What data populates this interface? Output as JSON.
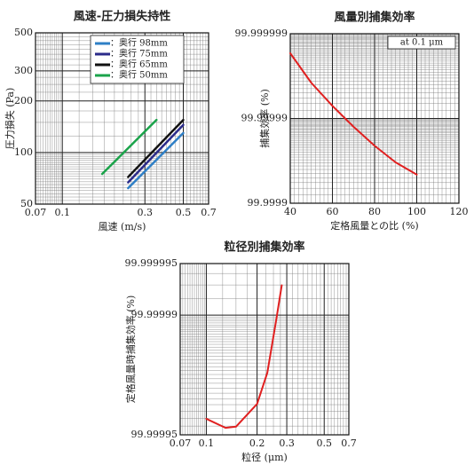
{
  "chart_data": [
    {
      "type": "line",
      "title": "風速-圧力損失持性",
      "x_label": "風速 (m/s)",
      "y_label": "圧力損失 (Pa)",
      "xscale": "log",
      "yscale": "log",
      "xlim": [
        0.07,
        0.7
      ],
      "xticks": [
        0.07,
        0.1,
        0.3,
        0.5,
        0.7
      ],
      "ylim": [
        50,
        500
      ],
      "yticks": [
        50,
        100,
        200,
        300,
        500
      ],
      "legend": "top-left",
      "series": [
        {
          "name": "：奥行 98mm",
          "color": "#2e7fc6",
          "x": [
            0.24,
            0.5
          ],
          "values": [
            62,
            130
          ]
        },
        {
          "name": "：奥行 75mm",
          "color": "#2b2b8a",
          "x": [
            0.24,
            0.5
          ],
          "values": [
            67,
            145
          ]
        },
        {
          "name": "：奥行 65mm",
          "color": "#111111",
          "x": [
            0.24,
            0.5
          ],
          "values": [
            72,
            155
          ]
        },
        {
          "name": "：奥行 50mm",
          "color": "#1aa34a",
          "x": [
            0.17,
            0.35
          ],
          "values": [
            75,
            155
          ]
        }
      ]
    },
    {
      "type": "line",
      "title": "風量別捕集効率",
      "x_label": "定格風量との比 (%)",
      "y_label": "捕集効率 (%)",
      "annotation": "at 0.1 μm",
      "xscale": "linear",
      "yscale": "log-penetration",
      "xlim": [
        40,
        120
      ],
      "xticks": [
        40,
        60,
        80,
        100,
        120
      ],
      "ylim": [
        99.9999,
        99.999999
      ],
      "yticks": [
        99.9999,
        99.99999,
        99.999999
      ],
      "color": "#e02020",
      "x": [
        40,
        50,
        60,
        70,
        80,
        90,
        100
      ],
      "values": [
        99.9999983,
        99.9999962,
        99.9999929,
        99.9999875,
        99.999979,
        99.999967,
        99.999954
      ]
    },
    {
      "type": "line",
      "title": "粒径別捕集効率",
      "x_label": "粒径 (μm)",
      "y_label": "定格風量時捕集効率 (%)",
      "xscale": "log",
      "yscale": "log-penetration",
      "xlim": [
        0.07,
        0.7
      ],
      "xticks": [
        0.07,
        0.1,
        0.2,
        0.3,
        0.5,
        0.7
      ],
      "ylim": [
        99.99995,
        99.999995
      ],
      "yticks": [
        99.99995,
        99.99999,
        99.999995
      ],
      "color": "#e02020",
      "x": [
        0.1,
        0.13,
        0.15,
        0.2,
        0.23,
        0.26,
        0.28
      ],
      "values": [
        99.9999597,
        99.9999545,
        99.9999552,
        99.999967,
        99.9999783,
        99.9999894,
        99.9999933
      ]
    }
  ]
}
